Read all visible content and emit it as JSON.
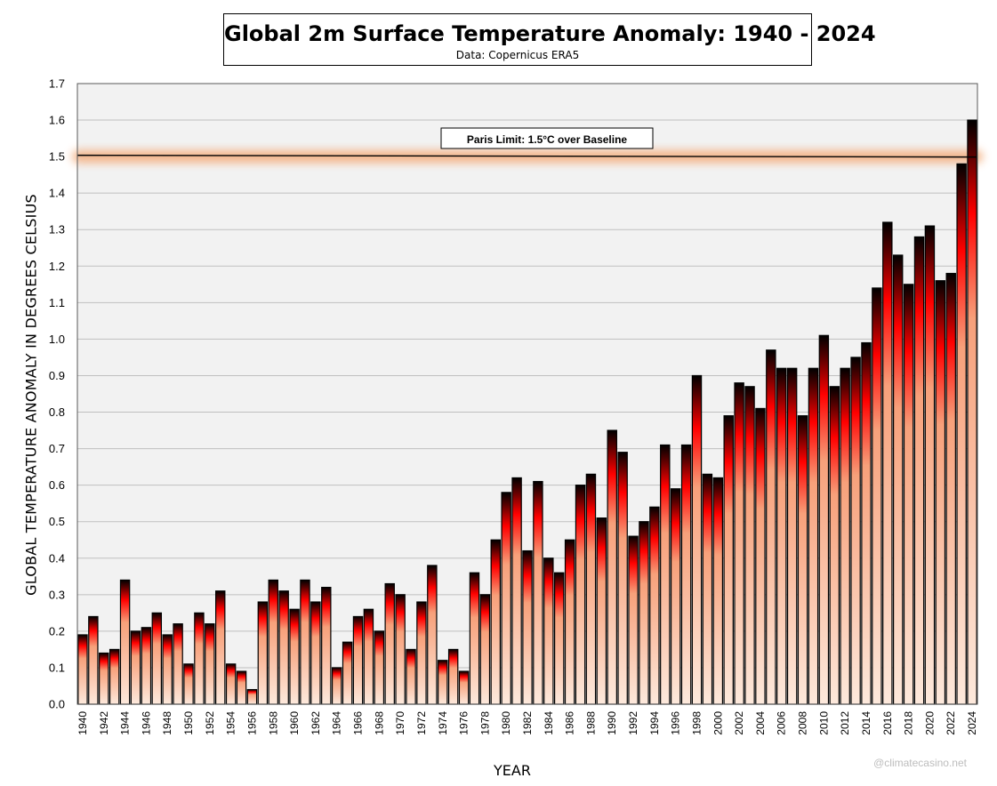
{
  "header": {
    "title": "Global 2m Surface Temperature Anomaly: 1940 - 2024",
    "subtitle": "Data: Copernicus ERA5"
  },
  "watermark": "@climatecasino.net",
  "colors": {
    "plot_background": "#f2f2f2",
    "bar_top": "#000000",
    "bar_mid": "#ff0000",
    "bar_base": "#fce4d6",
    "reference_line": "#000000",
    "reference_glow": "#f4b183"
  },
  "chart_data": {
    "type": "bar",
    "xlabel": "YEAR",
    "ylabel": "GLOBAL TEMPERATURE ANOMALY IN DEGREES CELSIUS",
    "ylim": [
      0,
      1.7
    ],
    "yticks": [
      "0.0",
      "0.1",
      "0.2",
      "0.3",
      "0.4",
      "0.5",
      "0.6",
      "0.7",
      "0.8",
      "0.9",
      "1.0",
      "1.1",
      "1.2",
      "1.3",
      "1.4",
      "1.5",
      "1.6",
      "1.7"
    ],
    "grid": true,
    "categories": [
      1940,
      1941,
      1942,
      1943,
      1944,
      1945,
      1946,
      1947,
      1948,
      1949,
      1950,
      1951,
      1952,
      1953,
      1954,
      1955,
      1956,
      1957,
      1958,
      1959,
      1960,
      1961,
      1962,
      1963,
      1964,
      1965,
      1966,
      1967,
      1968,
      1969,
      1970,
      1971,
      1972,
      1973,
      1974,
      1975,
      1976,
      1977,
      1978,
      1979,
      1980,
      1981,
      1982,
      1983,
      1984,
      1985,
      1986,
      1987,
      1988,
      1989,
      1990,
      1991,
      1992,
      1993,
      1994,
      1995,
      1996,
      1997,
      1998,
      1999,
      2000,
      2001,
      2002,
      2003,
      2004,
      2005,
      2006,
      2007,
      2008,
      2009,
      2010,
      2011,
      2012,
      2013,
      2014,
      2015,
      2016,
      2017,
      2018,
      2019,
      2020,
      2021,
      2022,
      2023,
      2024
    ],
    "tick_labels": [
      "1940",
      "1942",
      "1944",
      "1946",
      "1948",
      "1950",
      "1952",
      "1954",
      "1956",
      "1958",
      "1960",
      "1962",
      "1964",
      "1966",
      "1968",
      "1970",
      "1972",
      "1974",
      "1976",
      "1978",
      "1980",
      "1982",
      "1984",
      "1986",
      "1988",
      "1990",
      "1992",
      "1994",
      "1996",
      "1998",
      "2000",
      "2002",
      "2004",
      "2006",
      "2008",
      "2010",
      "2012",
      "2014",
      "2016",
      "2018",
      "2020",
      "2022",
      "2024"
    ],
    "values": [
      0.19,
      0.24,
      0.14,
      0.15,
      0.34,
      0.2,
      0.21,
      0.25,
      0.19,
      0.22,
      0.11,
      0.25,
      0.22,
      0.31,
      0.11,
      0.09,
      0.04,
      0.28,
      0.34,
      0.31,
      0.26,
      0.34,
      0.28,
      0.32,
      0.1,
      0.17,
      0.24,
      0.26,
      0.2,
      0.33,
      0.3,
      0.15,
      0.28,
      0.38,
      0.12,
      0.15,
      0.09,
      0.36,
      0.3,
      0.45,
      0.58,
      0.62,
      0.42,
      0.61,
      0.4,
      0.36,
      0.45,
      0.6,
      0.63,
      0.51,
      0.75,
      0.69,
      0.46,
      0.5,
      0.54,
      0.71,
      0.59,
      0.71,
      0.9,
      0.63,
      0.62,
      0.79,
      0.88,
      0.87,
      0.81,
      0.97,
      0.92,
      0.92,
      0.79,
      0.92,
      1.01,
      0.87,
      0.92,
      0.95,
      0.99,
      1.14,
      1.32,
      1.23,
      1.15,
      1.28,
      1.31,
      1.16,
      1.18,
      1.48,
      1.6
    ],
    "reference_line": {
      "value": 1.5,
      "label": "Paris Limit: 1.5°C over Baseline"
    }
  }
}
